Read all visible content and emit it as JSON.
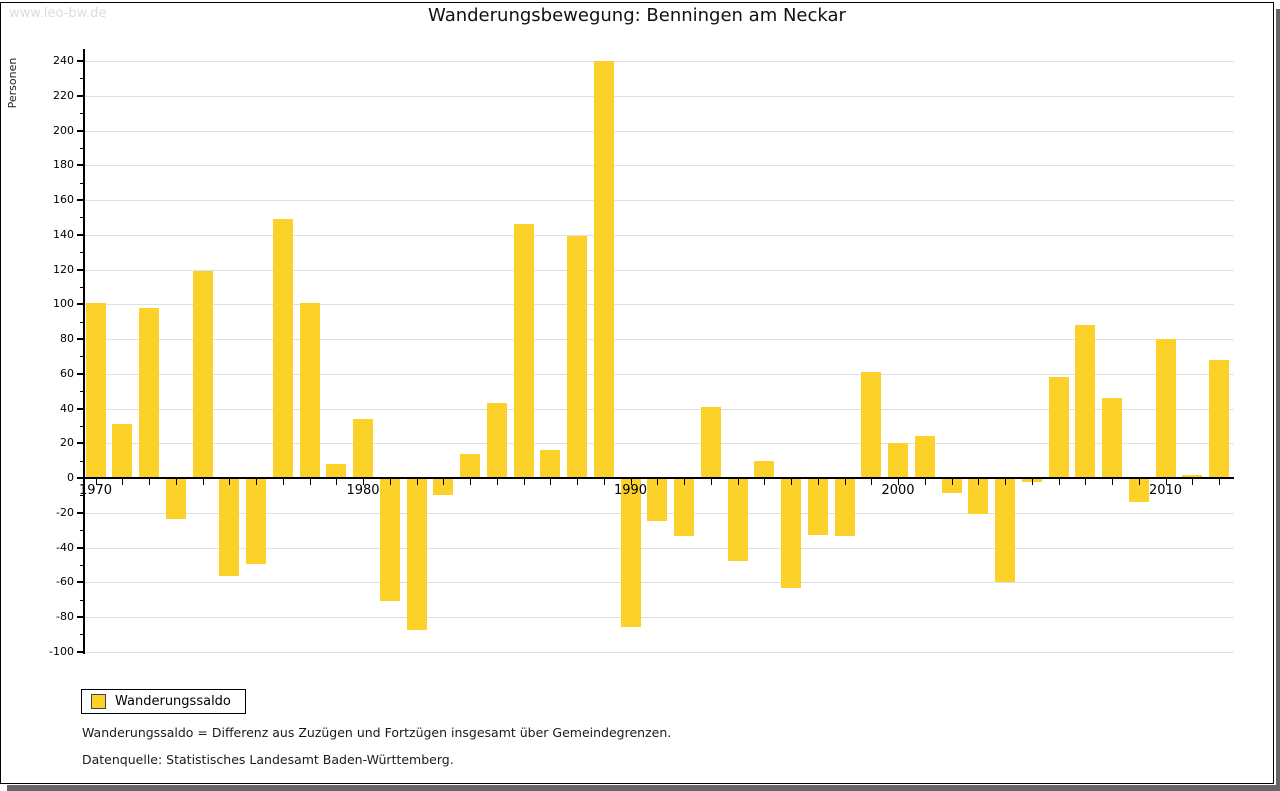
{
  "watermark": "www.leo-bw.de",
  "title": "Wanderungsbewegung: Benningen am Neckar",
  "legend": {
    "label": "Wanderungssaldo"
  },
  "footnotes": [
    "Wanderungssaldo = Differenz aus Zuzügen und Fortzügen insgesamt über Gemeindegrenzen.",
    "Datenquelle: Statistisches Landesamt Baden-Württemberg."
  ],
  "chart_data": {
    "type": "bar",
    "title": "Wanderungsbewegung: Benningen am Neckar",
    "ylabel": "Personen",
    "xlabel": "",
    "series_name": "Wanderungssaldo",
    "ylim": [
      -100,
      240
    ],
    "grid": true,
    "legend_position": "bottom-left",
    "bar_color": "#fcd12a",
    "gridline_color": "#e0e0e0",
    "y_ticks": [
      240,
      220,
      200,
      180,
      160,
      140,
      120,
      100,
      80,
      60,
      40,
      20,
      0,
      -20,
      -40,
      -60,
      -80,
      -100
    ],
    "x_tick_labels": [
      "1970",
      "1980",
      "1990",
      "2000",
      "2010"
    ],
    "x": [
      1970,
      1971,
      1972,
      1973,
      1974,
      1975,
      1976,
      1977,
      1978,
      1979,
      1980,
      1981,
      1982,
      1983,
      1984,
      1985,
      1986,
      1987,
      1988,
      1989,
      1990,
      1991,
      1992,
      1993,
      1994,
      1995,
      1996,
      1997,
      1998,
      1999,
      2000,
      2001,
      2002,
      2003,
      2004,
      2005,
      2006,
      2007,
      2008,
      2009,
      2010,
      2011,
      2012
    ],
    "values": [
      101,
      31,
      98,
      -23,
      119,
      -56,
      -49,
      149,
      101,
      8,
      34,
      -70,
      -87,
      -9,
      14,
      43,
      146,
      16,
      139,
      240,
      -85,
      -24,
      -33,
      41,
      -47,
      10,
      -63,
      -32,
      -33,
      61,
      20,
      24,
      -8,
      -20,
      -59,
      -2,
      58,
      88,
      46,
      -13,
      80,
      2,
      68
    ]
  }
}
